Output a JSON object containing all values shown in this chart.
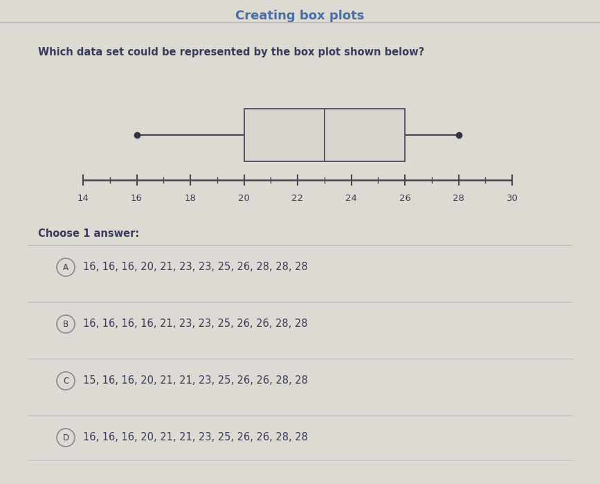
{
  "title": "Creating box plots",
  "question": "Which data set could be represented by the box plot shown below?",
  "boxplot": {
    "min": 16,
    "q1": 20,
    "median": 23,
    "q3": 26,
    "max": 28
  },
  "axis_min": 14,
  "axis_max": 30,
  "axis_ticks": [
    14,
    16,
    18,
    20,
    22,
    24,
    26,
    28,
    30
  ],
  "choices": [
    {
      "label": "A",
      "text": "16, 16, 16, 20, 21, 23, 23, 25, 26, 28, 28, 28"
    },
    {
      "label": "B",
      "text": "16, 16, 16, 16, 21, 23, 23, 25, 26, 26, 28, 28"
    },
    {
      "label": "C",
      "text": "15, 16, 16, 20, 21, 21, 23, 25, 26, 26, 28, 28"
    },
    {
      "label": "D",
      "text": "16, 16, 16, 20, 21, 21, 23, 25, 26, 26, 28, 28"
    }
  ],
  "bg_color": "#ddd9d3",
  "title_color": "#4a6fa5",
  "text_color": "#3a3a5c",
  "box_facecolor": "#d8d4ce",
  "box_edgecolor": "#555566",
  "whisker_color": "#444455",
  "dot_color": "#333344",
  "circle_color": "#888899",
  "divider_color": "#bbbbbb",
  "title_fontsize": 13,
  "question_fontsize": 10.5,
  "choice_fontsize": 10.5
}
